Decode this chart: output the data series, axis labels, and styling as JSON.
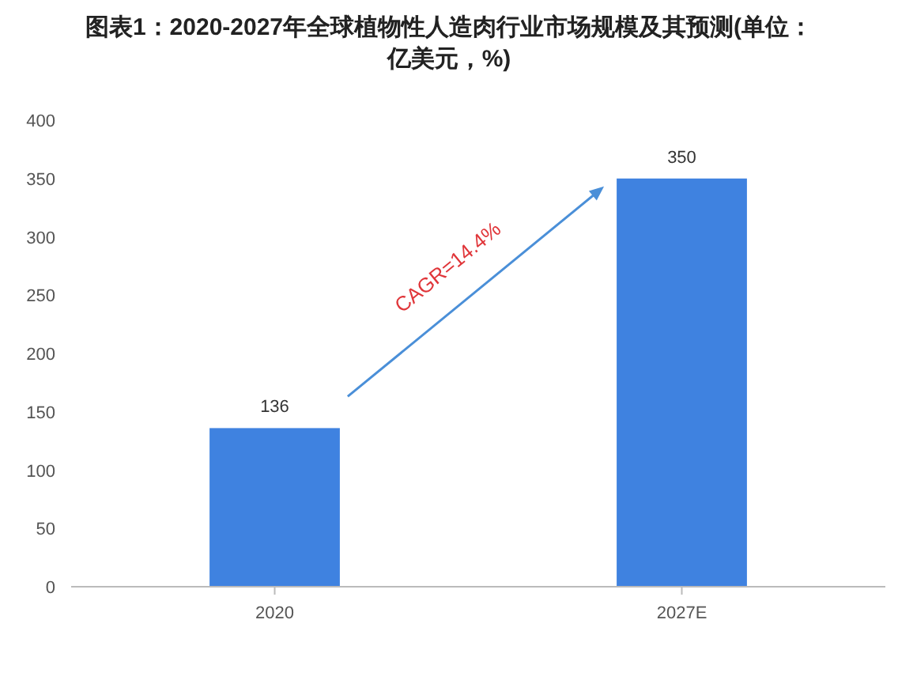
{
  "chart_data": {
    "type": "bar",
    "title": "图表1：2020-2027年全球植物性人造肉行业市场规模及其预测(单位：亿美元，%)",
    "categories": [
      "2020",
      "2027E"
    ],
    "series": [
      {
        "color": "#3f82e0",
        "values": [
          136,
          350
        ]
      }
    ],
    "ylim": [
      0,
      400
    ],
    "yticks": [
      0,
      50,
      100,
      150,
      200,
      250,
      300,
      350,
      400
    ],
    "data_labels": true,
    "annotations": [
      "CAGR=14.4%"
    ]
  }
}
